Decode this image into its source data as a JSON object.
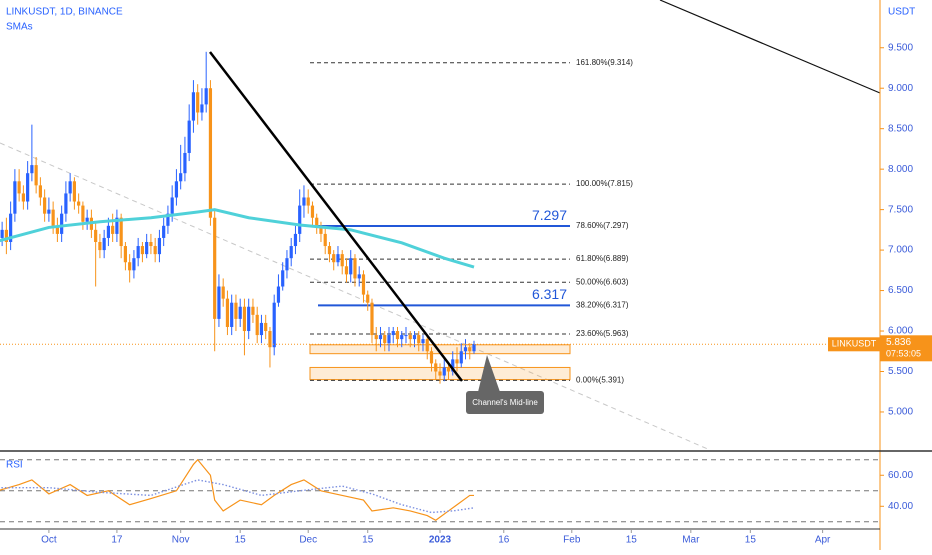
{
  "chart_data": [
    {
      "type": "candlestick",
      "title": "LINKUSDT, 1D, BINANCE",
      "subtitle": "SMAs",
      "y_axis_label": "USDT",
      "x": [
        -12,
        -11,
        -10,
        -9,
        -8,
        -7,
        -6,
        -5,
        -4,
        -3,
        -2,
        -1,
        0,
        1,
        2,
        3,
        4,
        5,
        6,
        7,
        8,
        9,
        10,
        11,
        12,
        13,
        14,
        15,
        16,
        17,
        18,
        19,
        20,
        21,
        22,
        23,
        24,
        25,
        26,
        27,
        28,
        29,
        30,
        31,
        32,
        33,
        34,
        35,
        36,
        37,
        38,
        39,
        40,
        41,
        42,
        43,
        44,
        45,
        46,
        47,
        48,
        49,
        50,
        51,
        52,
        53,
        54,
        55,
        56,
        57,
        58,
        59,
        60,
        61,
        62,
        63,
        64,
        65,
        66,
        67,
        68,
        69,
        70,
        71,
        72,
        73,
        74,
        75,
        76,
        77,
        78,
        79,
        80,
        81,
        82,
        83,
        84,
        85,
        86,
        87,
        88,
        89,
        90,
        91,
        92,
        93,
        94,
        95,
        96,
        97,
        98,
        99,
        100
      ],
      "xlim": [
        -11.5,
        195.5
      ],
      "xticks": [
        {
          "value": 0,
          "label": "Oct"
        },
        {
          "value": 16,
          "label": "17"
        },
        {
          "value": 31,
          "label": "Nov"
        },
        {
          "value": 45,
          "label": "15"
        },
        {
          "value": 61,
          "label": "Dec"
        },
        {
          "value": 75,
          "label": "15"
        },
        {
          "value": 92,
          "label": "2023"
        },
        {
          "value": 107,
          "label": "16"
        },
        {
          "value": 123,
          "label": "Feb"
        },
        {
          "value": 137,
          "label": "15"
        },
        {
          "value": 151,
          "label": "Mar"
        },
        {
          "value": 165,
          "label": "15"
        },
        {
          "value": 182,
          "label": "Apr"
        }
      ],
      "ylim": [
        4.53,
        10.09
      ],
      "yticks": [
        {
          "value": 5,
          "label": "5.000"
        },
        {
          "value": 5.5,
          "label": "5.500"
        },
        {
          "value": 6,
          "label": "6.000"
        },
        {
          "value": 6.5,
          "label": "6.500"
        },
        {
          "value": 7,
          "label": "7.000"
        },
        {
          "value": 7.5,
          "label": "7.500"
        },
        {
          "value": 8,
          "label": "8.000"
        },
        {
          "value": 8.5,
          "label": "8.500"
        },
        {
          "value": 9,
          "label": "9.000"
        },
        {
          "value": 9.5,
          "label": "9.500"
        }
      ],
      "series": [
        {
          "name": "LINKUSDT",
          "up_color": "#2962ff",
          "down_color": "#f7931a",
          "open": [
            7.05,
            7.15,
            7.25,
            7.1,
            7.45,
            7.85,
            7.7,
            7.6,
            7.95,
            8.05,
            7.8,
            7.65,
            7.45,
            7.5,
            7.3,
            7.2,
            7.45,
            7.7,
            7.85,
            7.6,
            7.55,
            7.35,
            7.4,
            7.25,
            7.1,
            7.0,
            7.15,
            7.3,
            7.2,
            7.4,
            7.05,
            6.85,
            6.75,
            6.9,
            7.05,
            6.95,
            7.1,
            7.05,
            6.95,
            7.15,
            7.3,
            7.45,
            7.65,
            7.85,
            7.95,
            8.2,
            8.6,
            8.95,
            8.7,
            8.8,
            9.0,
            7.4,
            6.15,
            6.55,
            6.4,
            6.05,
            6.35,
            6.15,
            6.3,
            6.0,
            6.3,
            6.2,
            5.95,
            6.1,
            6.0,
            5.8,
            6.35,
            6.55,
            6.75,
            6.9,
            7.05,
            7.2,
            7.55,
            7.65,
            7.55,
            7.4,
            7.3,
            7.2,
            7.05,
            6.95,
            6.85,
            6.95,
            6.8,
            6.7,
            6.9,
            6.65,
            6.7,
            6.45,
            6.35,
            5.95,
            5.9,
            5.95,
            5.85,
            5.95,
            6.0,
            5.9,
            5.95,
            5.95,
            5.9,
            5.95,
            5.85,
            5.9,
            5.75,
            5.6,
            5.5,
            5.45,
            5.55,
            5.5,
            5.65,
            5.6,
            5.75,
            5.8,
            5.75
          ],
          "high": [
            7.3,
            7.35,
            7.4,
            7.6,
            8.0,
            8.0,
            7.8,
            8.1,
            8.55,
            8.15,
            7.9,
            7.75,
            7.65,
            7.6,
            7.4,
            7.55,
            7.85,
            7.95,
            7.9,
            7.7,
            7.6,
            7.5,
            7.5,
            7.35,
            7.2,
            7.25,
            7.4,
            7.45,
            7.5,
            7.45,
            7.1,
            6.95,
            7.0,
            7.15,
            7.1,
            7.2,
            7.2,
            7.15,
            7.25,
            7.4,
            7.55,
            7.8,
            8.0,
            8.3,
            8.4,
            8.8,
            9.1,
            9.05,
            9.0,
            9.45,
            9.1,
            7.5,
            6.7,
            6.65,
            6.5,
            6.45,
            6.45,
            6.4,
            6.4,
            6.4,
            6.4,
            6.3,
            6.2,
            6.2,
            6.05,
            6.45,
            6.7,
            6.85,
            7.0,
            7.15,
            7.3,
            7.75,
            7.8,
            7.75,
            7.6,
            7.45,
            7.35,
            7.3,
            7.1,
            7.0,
            7.05,
            7.0,
            6.9,
            7.0,
            6.95,
            6.8,
            6.75,
            6.5,
            6.4,
            6.05,
            6.05,
            6.0,
            6.05,
            6.05,
            6.05,
            6.0,
            6.05,
            6.0,
            6.0,
            6.0,
            5.95,
            5.95,
            5.8,
            5.65,
            5.6,
            5.65,
            5.6,
            5.75,
            5.8,
            5.85,
            5.9,
            5.85,
            5.88
          ],
          "low": [
            6.95,
            7.05,
            6.95,
            7.0,
            7.35,
            7.6,
            7.5,
            7.5,
            7.85,
            7.7,
            7.55,
            7.35,
            7.35,
            7.2,
            7.1,
            7.1,
            7.35,
            7.6,
            7.5,
            7.45,
            7.25,
            7.25,
            7.15,
            6.55,
            6.9,
            6.9,
            7.05,
            7.1,
            7.1,
            6.9,
            6.75,
            6.6,
            6.65,
            6.8,
            6.85,
            6.9,
            6.95,
            6.85,
            6.85,
            7.05,
            7.2,
            7.35,
            7.55,
            7.75,
            7.85,
            8.1,
            8.45,
            8.55,
            8.6,
            8.7,
            7.3,
            5.75,
            6.05,
            6.3,
            5.95,
            5.95,
            6.0,
            6.05,
            5.7,
            5.9,
            6.1,
            5.85,
            5.85,
            5.9,
            5.55,
            5.7,
            6.3,
            6.5,
            6.65,
            6.8,
            6.95,
            7.1,
            7.4,
            7.45,
            7.3,
            7.2,
            7.1,
            6.95,
            6.85,
            6.75,
            6.8,
            6.7,
            6.6,
            6.6,
            6.55,
            6.55,
            6.35,
            6.25,
            5.85,
            5.75,
            5.8,
            5.75,
            5.75,
            5.85,
            5.8,
            5.8,
            5.85,
            5.8,
            5.8,
            5.75,
            5.75,
            5.65,
            5.5,
            5.4,
            5.35,
            5.38,
            5.4,
            5.45,
            5.5,
            5.55,
            5.65,
            5.65,
            5.72
          ],
          "close": [
            7.15,
            7.25,
            7.1,
            7.45,
            7.85,
            7.7,
            7.6,
            7.95,
            8.05,
            7.8,
            7.65,
            7.45,
            7.5,
            7.3,
            7.2,
            7.45,
            7.7,
            7.85,
            7.6,
            7.55,
            7.35,
            7.4,
            7.25,
            7.1,
            7.0,
            7.15,
            7.3,
            7.2,
            7.4,
            7.05,
            6.85,
            6.75,
            6.9,
            7.05,
            6.95,
            7.1,
            7.05,
            6.95,
            7.15,
            7.3,
            7.45,
            7.65,
            7.85,
            7.95,
            8.2,
            8.6,
            8.95,
            8.7,
            8.8,
            9.0,
            7.4,
            6.15,
            6.55,
            6.4,
            6.05,
            6.35,
            6.15,
            6.3,
            6.0,
            6.3,
            6.2,
            5.95,
            6.1,
            6.0,
            5.8,
            6.35,
            6.55,
            6.75,
            6.9,
            7.05,
            7.2,
            7.55,
            7.65,
            7.55,
            7.4,
            7.3,
            7.2,
            7.05,
            6.95,
            6.85,
            6.95,
            6.8,
            6.7,
            6.9,
            6.65,
            6.7,
            6.45,
            6.35,
            5.95,
            5.9,
            5.95,
            5.85,
            5.95,
            6.0,
            5.9,
            5.95,
            5.95,
            5.9,
            5.95,
            5.85,
            5.9,
            5.75,
            5.6,
            5.5,
            5.45,
            5.55,
            5.5,
            5.65,
            5.6,
            5.75,
            5.8,
            5.75,
            5.84
          ]
        }
      ],
      "sma": {
        "color": "#4fd1d9",
        "x": [
          -12,
          0,
          12,
          24,
          35,
          39,
          47,
          59,
          71,
          83,
          93,
          100
        ],
        "values": [
          7.11,
          7.28,
          7.35,
          7.4,
          7.47,
          7.5,
          7.4,
          7.31,
          7.25,
          7.09,
          6.9,
          6.79
        ]
      },
      "fib_levels": [
        {
          "label": "161.80%(9.314)",
          "value": 9.314
        },
        {
          "label": "100.00%(7.815)",
          "value": 7.815
        },
        {
          "label": "78.60%(7.297)",
          "value": 7.297,
          "highlight": true
        },
        {
          "label": "61.80%(6.889)",
          "value": 6.889
        },
        {
          "label": "50.00%(6.603)",
          "value": 6.603
        },
        {
          "label": "38.20%(6.317)",
          "value": 6.317,
          "highlight": true
        },
        {
          "label": "23.60%(5.963)",
          "value": 5.963
        },
        {
          "label": "0.00%(5.391)",
          "value": 5.391
        }
      ],
      "zones": [
        [
          5.72,
          5.83
        ],
        [
          5.4,
          5.55
        ]
      ],
      "last_price": 5.836,
      "countdown": "07:53:05",
      "annotation": "Channel's Mid-line"
    },
    {
      "type": "line",
      "title": "RSI",
      "ylim": [
        26,
        75
      ],
      "yticks": [
        {
          "value": 60,
          "label": "60.00"
        },
        {
          "value": 40,
          "label": "40.00"
        }
      ],
      "bands": [
        70,
        50,
        30
      ],
      "series": [
        {
          "color": "#f7931a",
          "x": [
            -12,
            -7,
            -4,
            0,
            5,
            9,
            14,
            19,
            24,
            30,
            34,
            35,
            38,
            39,
            41,
            45,
            50,
            53,
            57,
            60,
            64,
            69,
            74,
            76,
            81,
            85,
            89,
            91,
            94,
            96,
            99,
            100
          ],
          "values": [
            50,
            54,
            57,
            48,
            54,
            47,
            50,
            41,
            45,
            50,
            67,
            70,
            60,
            44,
            37,
            44,
            41,
            47,
            54,
            57,
            50,
            47,
            44,
            37,
            39,
            37,
            34,
            31,
            37,
            41,
            47,
            47
          ]
        },
        {
          "color": "#7b8fe0",
          "dotted": true,
          "x": [
            -12,
            0,
            12,
            24,
            35,
            41,
            50,
            59,
            69,
            76,
            83,
            90,
            95,
            100
          ],
          "values": [
            52,
            52,
            49,
            47,
            57,
            54,
            47,
            50,
            53,
            48,
            41,
            36,
            37,
            39
          ]
        }
      ]
    }
  ]
}
